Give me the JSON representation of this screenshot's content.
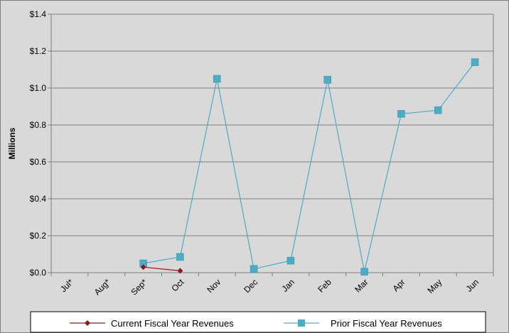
{
  "chart_data": {
    "type": "line",
    "title": "",
    "xlabel": "",
    "ylabel": "Millions",
    "ylim": [
      0,
      1.4
    ],
    "y_ticks": [
      0,
      0.2,
      0.4,
      0.6,
      0.8,
      1.0,
      1.2,
      1.4
    ],
    "y_tick_labels": [
      "$0.0",
      "$0.2",
      "$0.4",
      "$0.6",
      "$0.8",
      "$1.0",
      "$1.2",
      "$1.4"
    ],
    "categories": [
      "Jul*",
      "Aug*",
      "Sep*",
      "Oct",
      "Nov",
      "Dec",
      "Jan",
      "Feb",
      "Mar",
      "Apr",
      "May",
      "Jun"
    ],
    "grid": true,
    "legend_position": "bottom",
    "series": [
      {
        "name": "Current Fiscal Year Revenues",
        "color": "#8b1a1a",
        "marker": "diamond",
        "values": [
          null,
          null,
          0.03,
          0.01,
          null,
          null,
          null,
          null,
          null,
          null,
          null,
          null
        ]
      },
      {
        "name": "Prior Fiscal Year Revenues",
        "color": "#4bacc6",
        "marker": "square",
        "values": [
          null,
          null,
          0.05,
          0.085,
          1.05,
          0.02,
          0.065,
          1.045,
          0.005,
          0.86,
          0.88,
          1.14
        ]
      }
    ]
  }
}
